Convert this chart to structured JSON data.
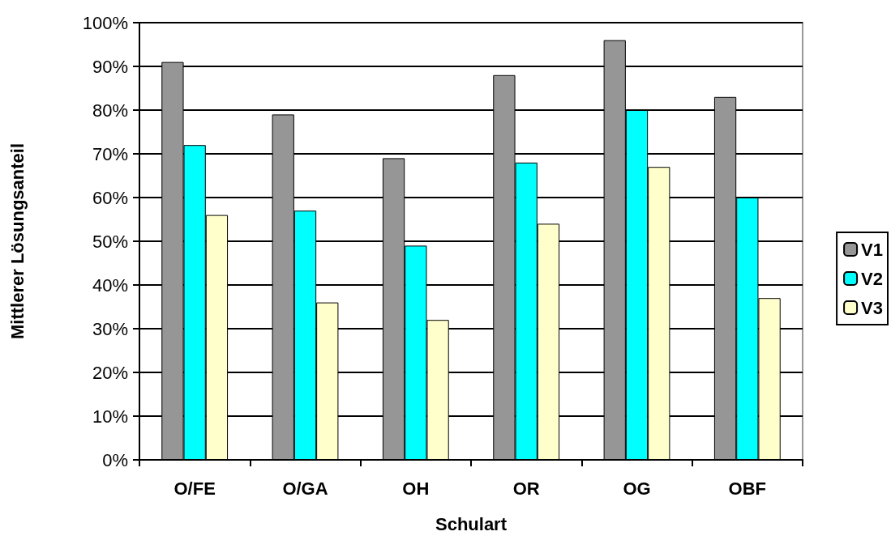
{
  "chart_data": {
    "type": "bar",
    "xlabel": "Schulart",
    "ylabel": "Mittlerer Lösungsanteil",
    "categories": [
      "O/FE",
      "O/GA",
      "OH",
      "OR",
      "OG",
      "OBF"
    ],
    "series": [
      {
        "name": "V1",
        "color": "#969696",
        "values": [
          91,
          79,
          69,
          88,
          96,
          83
        ]
      },
      {
        "name": "V2",
        "color": "#00ffff",
        "values": [
          72,
          57,
          49,
          68,
          80,
          60
        ]
      },
      {
        "name": "V3",
        "color": "#ffffcc",
        "values": [
          56,
          36,
          32,
          54,
          67,
          37
        ]
      }
    ],
    "ylim": [
      0,
      100
    ],
    "yticks": [
      {
        "value": 0,
        "label": "0%"
      },
      {
        "value": 10,
        "label": "10%"
      },
      {
        "value": 20,
        "label": "20%"
      },
      {
        "value": 30,
        "label": "30%"
      },
      {
        "value": 40,
        "label": "40%"
      },
      {
        "value": 50,
        "label": "50%"
      },
      {
        "value": 60,
        "label": "60%"
      },
      {
        "value": 70,
        "label": "70%"
      },
      {
        "value": 80,
        "label": "80%"
      },
      {
        "value": 90,
        "label": "90%"
      },
      {
        "value": 100,
        "label": "100%"
      }
    ],
    "grid": "y",
    "legend": "right"
  }
}
